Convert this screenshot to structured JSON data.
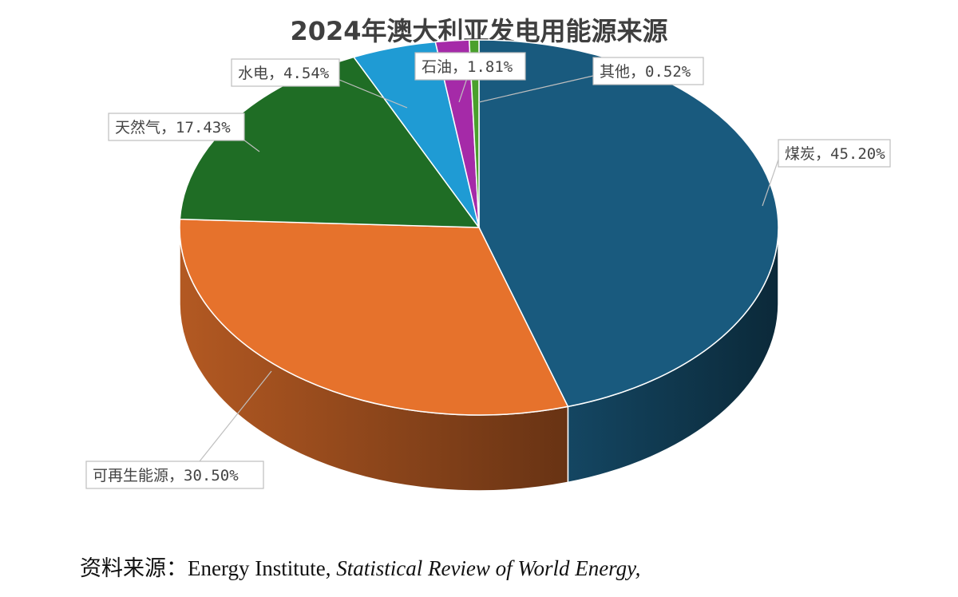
{
  "chart_data": {
    "type": "pie",
    "title": "2024年澳大利亚发电用能源来源",
    "series": [
      {
        "name": "煤炭",
        "value": 45.2,
        "label": "煤炭，45.20%",
        "color": "#195a7e"
      },
      {
        "name": "可再生能源",
        "value": 30.5,
        "label": "可再生能源，30.50%",
        "color": "#e6722c"
      },
      {
        "name": "天然气",
        "value": 17.43,
        "label": "天然气，17.43%",
        "color": "#1f6d25"
      },
      {
        "name": "水电",
        "value": 4.54,
        "label": "水电，4.54%",
        "color": "#1f9bd4"
      },
      {
        "name": "石油",
        "value": 1.81,
        "label": "石油，1.81%",
        "color": "#a52aa8"
      },
      {
        "name": "其他",
        "value": 0.52,
        "label": "其他，0.52%",
        "color": "#4aa02c"
      }
    ],
    "legend": "none",
    "style": "3d"
  },
  "source": {
    "prefix": "资料来源：",
    "publisher": "Energy Institute, ",
    "publication": "Statistical Review of World Energy,"
  }
}
